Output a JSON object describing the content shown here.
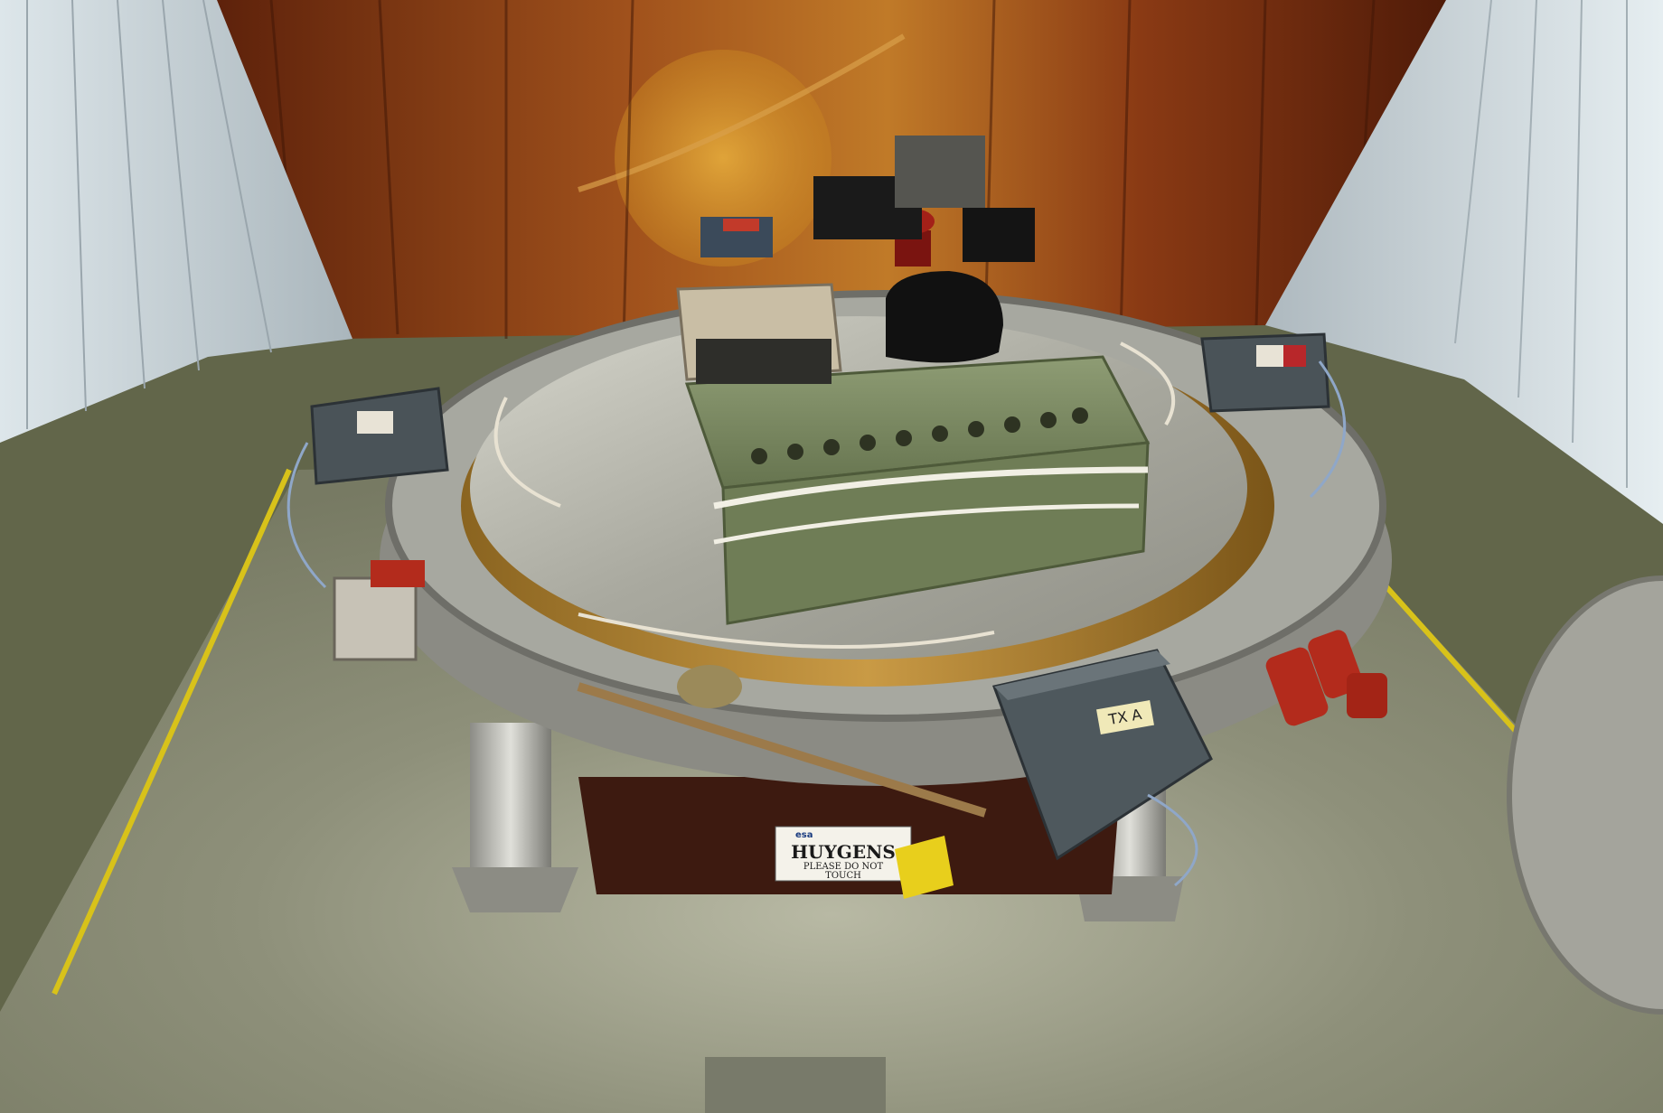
{
  "photo": {
    "sign": {
      "logo_text": "esa",
      "title": "HUYGENS",
      "line1": "PLEASE DO NOT",
      "line2": "TOUCH"
    },
    "tag_right": "TX A",
    "colors": {
      "wood_wall": "#8a3a12",
      "floor_mat": "#8d8f76",
      "carpet": "#5f6244",
      "hazard_tape": "#d8c21a",
      "electronics_box": "#7d8b64",
      "gold_ring": "#b98a3a",
      "aluminium": "#b7b7b0"
    }
  }
}
